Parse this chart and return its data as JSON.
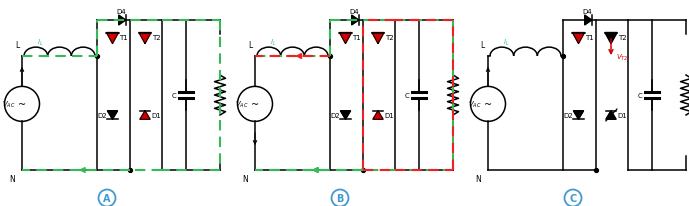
{
  "bg_color": "#ffffff",
  "lc": "#000000",
  "gc": "#33bb55",
  "rc": "#ee2222",
  "rcc": "#cc0000",
  "cc": "#33bbaa",
  "bc": "#4499cc",
  "panels": [
    {
      "label": "A",
      "ox": 0.02,
      "green": true,
      "red": false,
      "show_vt2": false,
      "d1_blocked": false
    },
    {
      "label": "B",
      "ox": 2.35,
      "green": true,
      "red": true,
      "show_vt2": false,
      "d1_blocked": false
    },
    {
      "label": "C",
      "ox": 4.68,
      "green": false,
      "red": false,
      "show_vt2": true,
      "d1_blocked": true
    }
  ],
  "pw": 2.28,
  "ph": 1.88
}
